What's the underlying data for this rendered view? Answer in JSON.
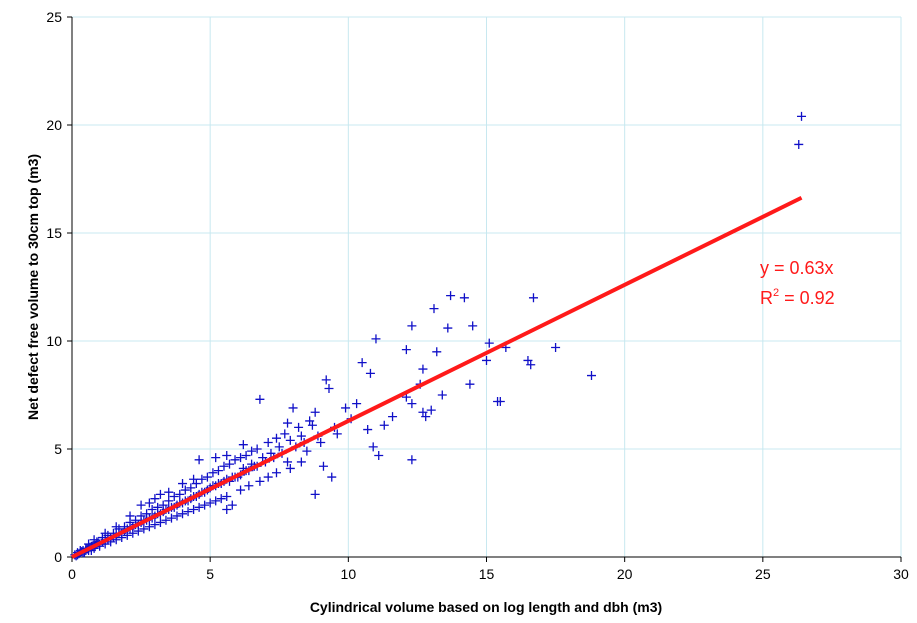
{
  "chart_data": {
    "type": "scatter",
    "title": "",
    "xlabel": "Cylindrical volume based on log length and dbh (m3)",
    "ylabel": "Net defect free volume to 30cm top (m3)",
    "xlim": [
      0,
      30
    ],
    "ylim": [
      0,
      25
    ],
    "x_ticks": [
      0,
      5,
      10,
      15,
      20,
      25,
      30
    ],
    "y_ticks": [
      0,
      5,
      10,
      15,
      20,
      25
    ],
    "grid": true,
    "legend": "none",
    "marker": "plus",
    "colors": {
      "points": "#1010c8",
      "trendline": "#ff1a1a",
      "grid": "#c8e8f0",
      "axes": "#000000"
    },
    "trendline": {
      "type": "linear-through-origin",
      "slope": 0.63,
      "x_range": [
        0,
        26.4
      ],
      "equation": "y = 0.63x",
      "r2_prefix": "R",
      "r2_superscript": "2",
      "r2_value": " = 0.92"
    },
    "series": [
      {
        "points": [
          [
            26.4,
            20.4
          ],
          [
            26.3,
            19.1
          ],
          [
            13.7,
            12.1
          ],
          [
            14.2,
            12.0
          ],
          [
            16.7,
            12.0
          ],
          [
            13.1,
            11.5
          ],
          [
            12.3,
            10.7
          ],
          [
            13.6,
            10.6
          ],
          [
            14.5,
            10.7
          ],
          [
            11.0,
            10.1
          ],
          [
            15.1,
            9.9
          ],
          [
            15.7,
            9.7
          ],
          [
            17.5,
            9.7
          ],
          [
            12.1,
            9.6
          ],
          [
            13.2,
            9.5
          ],
          [
            16.5,
            9.1
          ],
          [
            16.6,
            8.9
          ],
          [
            15.0,
            9.1
          ],
          [
            10.5,
            9.0
          ],
          [
            12.7,
            8.7
          ],
          [
            10.8,
            8.5
          ],
          [
            18.8,
            8.4
          ],
          [
            9.2,
            8.2
          ],
          [
            14.4,
            8.0
          ],
          [
            12.6,
            8.0
          ],
          [
            9.3,
            7.8
          ],
          [
            13.4,
            7.5
          ],
          [
            12.1,
            7.4
          ],
          [
            6.8,
            7.3
          ],
          [
            15.4,
            7.2
          ],
          [
            15.5,
            7.2
          ],
          [
            10.3,
            7.1
          ],
          [
            12.3,
            7.1
          ],
          [
            8.0,
            6.9
          ],
          [
            12.7,
            6.7
          ],
          [
            13.0,
            6.8
          ],
          [
            9.9,
            6.9
          ],
          [
            12.8,
            6.5
          ],
          [
            11.6,
            6.5
          ],
          [
            11.3,
            6.1
          ],
          [
            10.7,
            5.9
          ],
          [
            11.1,
            4.7
          ],
          [
            10.9,
            5.1
          ],
          [
            12.3,
            4.5
          ],
          [
            8.8,
            2.9
          ],
          [
            9.4,
            3.7
          ],
          [
            9.1,
            4.2
          ],
          [
            5.8,
            2.4
          ],
          [
            5.6,
            2.2
          ],
          [
            8.7,
            6.1
          ],
          [
            8.3,
            5.6
          ],
          [
            7.9,
            5.4
          ],
          [
            7.5,
            5.1
          ],
          [
            7.2,
            4.8
          ],
          [
            7.8,
            4.4
          ],
          [
            8.5,
            4.9
          ],
          [
            9.0,
            5.3
          ],
          [
            9.6,
            5.7
          ],
          [
            10.1,
            6.4
          ],
          [
            6.9,
            4.6
          ],
          [
            6.5,
            4.3
          ],
          [
            6.2,
            4.1
          ],
          [
            6.0,
            3.7
          ],
          [
            5.7,
            3.5
          ],
          [
            5.4,
            3.4
          ],
          [
            5.1,
            3.3
          ],
          [
            4.8,
            3.0
          ],
          [
            4.5,
            2.8
          ],
          [
            4.2,
            2.6
          ],
          [
            3.9,
            2.5
          ],
          [
            3.6,
            2.3
          ],
          [
            3.3,
            2.1
          ],
          [
            3.0,
            1.9
          ],
          [
            2.7,
            1.7
          ],
          [
            2.4,
            1.5
          ],
          [
            2.1,
            1.3
          ],
          [
            1.8,
            1.1
          ],
          [
            1.5,
            0.9
          ],
          [
            1.2,
            0.8
          ],
          [
            0.9,
            0.6
          ],
          [
            0.6,
            0.4
          ],
          [
            0.3,
            0.2
          ],
          [
            0.1,
            0.1
          ],
          [
            0.2,
            0.1
          ],
          [
            0.4,
            0.3
          ],
          [
            0.5,
            0.3
          ],
          [
            0.7,
            0.5
          ],
          [
            0.8,
            0.5
          ],
          [
            1.0,
            0.6
          ],
          [
            1.1,
            0.7
          ],
          [
            1.3,
            0.8
          ],
          [
            1.4,
            0.9
          ],
          [
            1.6,
            1.0
          ],
          [
            1.7,
            1.1
          ],
          [
            1.9,
            1.2
          ],
          [
            2.0,
            1.3
          ],
          [
            2.2,
            1.4
          ],
          [
            2.3,
            1.5
          ],
          [
            2.5,
            1.6
          ],
          [
            2.6,
            1.7
          ],
          [
            2.8,
            1.8
          ],
          [
            2.9,
            1.8
          ],
          [
            3.1,
            2.0
          ],
          [
            3.2,
            2.0
          ],
          [
            3.4,
            2.2
          ],
          [
            3.5,
            2.2
          ],
          [
            3.7,
            2.3
          ],
          [
            3.8,
            2.4
          ],
          [
            4.0,
            2.5
          ],
          [
            4.1,
            2.6
          ],
          [
            4.3,
            2.7
          ],
          [
            4.4,
            2.8
          ],
          [
            4.6,
            2.9
          ],
          [
            4.7,
            3.0
          ],
          [
            4.9,
            3.1
          ],
          [
            5.0,
            3.2
          ],
          [
            5.2,
            3.3
          ],
          [
            5.3,
            3.4
          ],
          [
            5.5,
            3.5
          ],
          [
            5.6,
            3.6
          ],
          [
            5.8,
            3.7
          ],
          [
            5.9,
            3.7
          ],
          [
            6.1,
            3.8
          ],
          [
            6.3,
            4.0
          ],
          [
            6.4,
            4.0
          ],
          [
            6.6,
            4.2
          ],
          [
            6.7,
            4.2
          ],
          [
            7.0,
            4.4
          ],
          [
            7.3,
            4.6
          ],
          [
            7.6,
            4.8
          ],
          [
            8.1,
            5.1
          ],
          [
            8.4,
            5.3
          ],
          [
            8.9,
            5.6
          ],
          [
            9.5,
            6.0
          ],
          [
            0.3,
            0.3
          ],
          [
            0.5,
            0.4
          ],
          [
            0.7,
            0.3
          ],
          [
            0.9,
            0.7
          ],
          [
            1.1,
            0.9
          ],
          [
            1.3,
            1.0
          ],
          [
            1.5,
            1.1
          ],
          [
            1.7,
            1.3
          ],
          [
            1.9,
            1.4
          ],
          [
            2.1,
            1.6
          ],
          [
            2.3,
            1.7
          ],
          [
            2.5,
            1.9
          ],
          [
            2.7,
            2.0
          ],
          [
            2.9,
            2.2
          ],
          [
            3.1,
            2.3
          ],
          [
            3.3,
            2.4
          ],
          [
            3.5,
            2.6
          ],
          [
            3.7,
            2.8
          ],
          [
            3.9,
            2.9
          ],
          [
            4.1,
            3.1
          ],
          [
            4.3,
            3.2
          ],
          [
            4.5,
            3.4
          ],
          [
            4.7,
            3.6
          ],
          [
            4.9,
            3.7
          ],
          [
            5.1,
            3.9
          ],
          [
            5.3,
            4.0
          ],
          [
            5.5,
            4.2
          ],
          [
            5.7,
            4.3
          ],
          [
            5.9,
            4.5
          ],
          [
            6.1,
            4.6
          ],
          [
            6.3,
            4.7
          ],
          [
            6.5,
            4.9
          ],
          [
            6.7,
            5.0
          ],
          [
            7.1,
            5.3
          ],
          [
            7.4,
            5.5
          ],
          [
            7.7,
            5.7
          ],
          [
            8.2,
            6.0
          ],
          [
            8.6,
            6.3
          ],
          [
            4.6,
            4.5
          ],
          [
            5.2,
            4.6
          ],
          [
            5.6,
            4.7
          ],
          [
            6.2,
            5.2
          ],
          [
            7.8,
            6.2
          ],
          [
            8.8,
            6.7
          ],
          [
            0.4,
            0.2
          ],
          [
            0.6,
            0.3
          ],
          [
            0.8,
            0.4
          ],
          [
            1.0,
            0.5
          ],
          [
            1.2,
            0.6
          ],
          [
            1.4,
            0.7
          ],
          [
            1.6,
            0.8
          ],
          [
            1.8,
            0.9
          ],
          [
            2.0,
            1.0
          ],
          [
            2.2,
            1.1
          ],
          [
            2.4,
            1.2
          ],
          [
            2.6,
            1.3
          ],
          [
            2.8,
            1.4
          ],
          [
            3.0,
            1.5
          ],
          [
            3.2,
            1.6
          ],
          [
            3.4,
            1.7
          ],
          [
            3.6,
            1.8
          ],
          [
            3.8,
            1.9
          ],
          [
            4.0,
            2.0
          ],
          [
            4.2,
            2.1
          ],
          [
            4.4,
            2.2
          ],
          [
            4.6,
            2.3
          ],
          [
            4.8,
            2.4
          ],
          [
            5.0,
            2.5
          ],
          [
            5.2,
            2.6
          ],
          [
            5.4,
            2.7
          ],
          [
            5.6,
            2.8
          ],
          [
            6.1,
            3.1
          ],
          [
            6.4,
            3.3
          ],
          [
            6.8,
            3.5
          ],
          [
            7.1,
            3.7
          ],
          [
            7.4,
            3.9
          ],
          [
            7.9,
            4.1
          ],
          [
            8.3,
            4.4
          ],
          [
            2.5,
            2.4
          ],
          [
            3.0,
            2.7
          ],
          [
            3.5,
            3.0
          ],
          [
            4.0,
            3.4
          ],
          [
            4.4,
            3.6
          ],
          [
            3.2,
            2.9
          ],
          [
            2.8,
            2.5
          ],
          [
            2.1,
            1.9
          ],
          [
            1.6,
            1.4
          ],
          [
            1.2,
            1.1
          ],
          [
            0.8,
            0.8
          ],
          [
            0.6,
            0.6
          ],
          [
            0.2,
            0.2
          ],
          [
            0.15,
            0.05
          ],
          [
            0.25,
            0.15
          ],
          [
            0.35,
            0.25
          ],
          [
            0.45,
            0.2
          ],
          [
            0.55,
            0.4
          ],
          [
            0.65,
            0.45
          ],
          [
            0.75,
            0.5
          ],
          [
            0.85,
            0.55
          ],
          [
            0.95,
            0.65
          ]
        ]
      }
    ]
  }
}
